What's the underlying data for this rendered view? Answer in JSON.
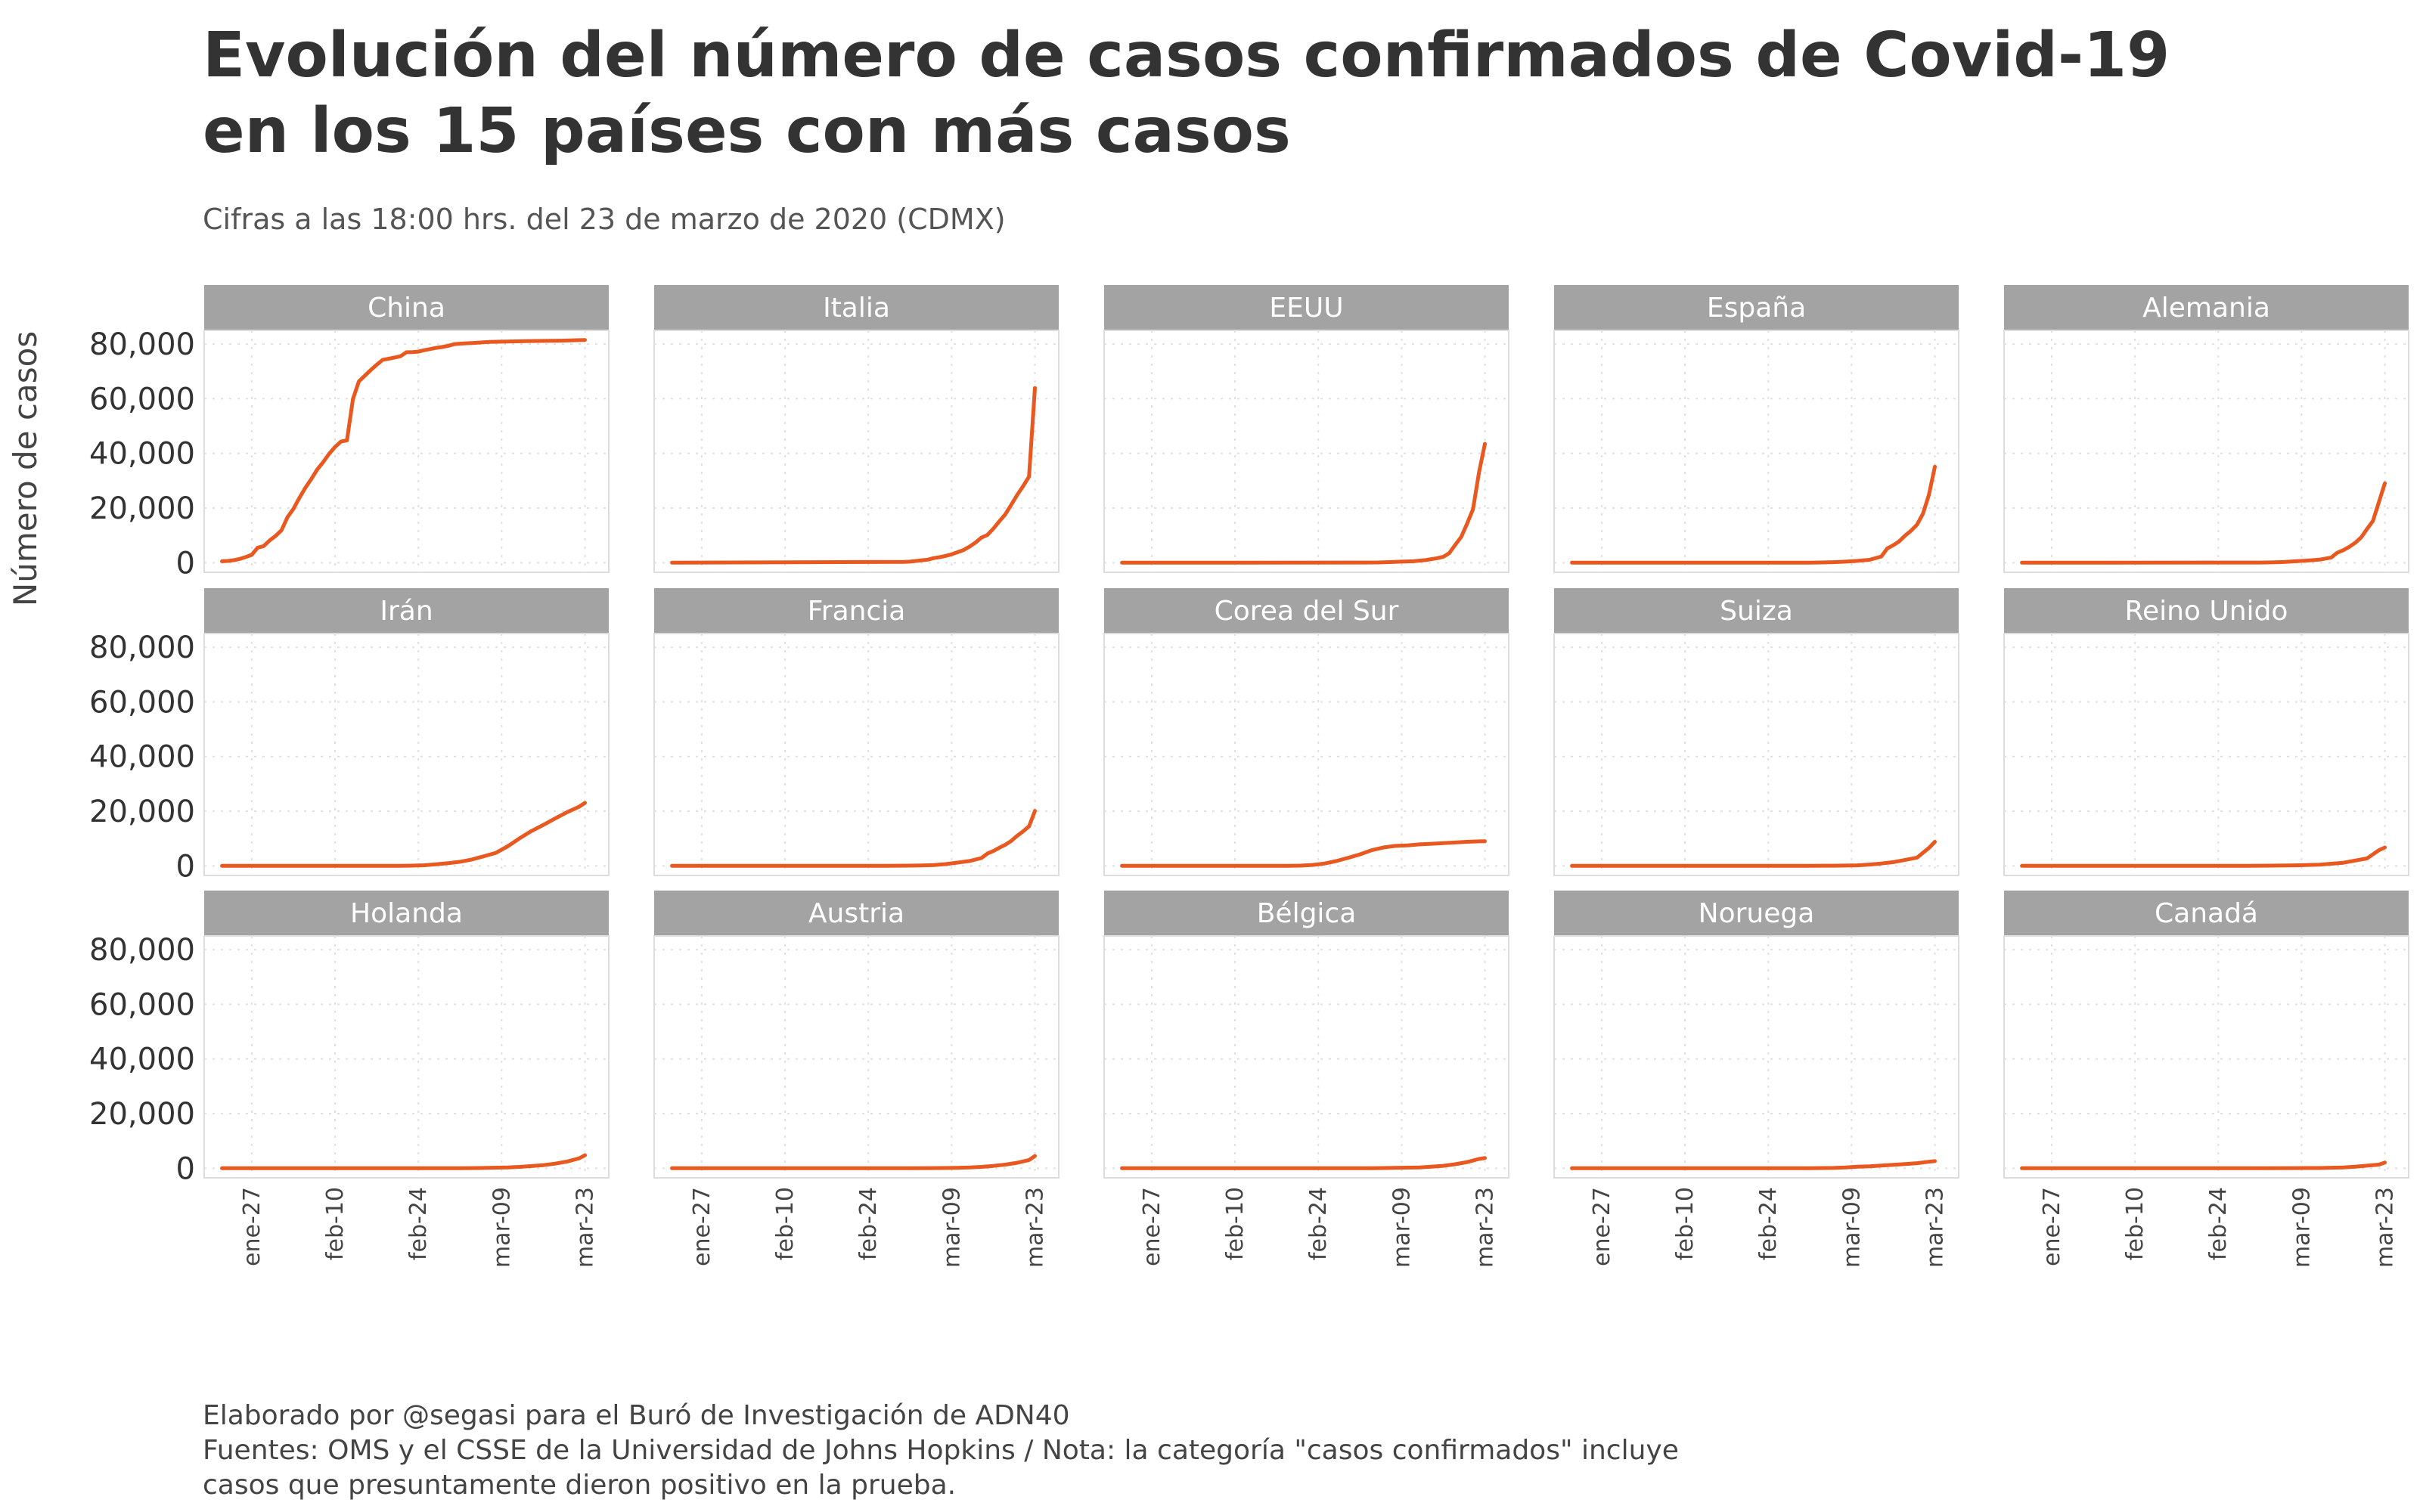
{
  "title": "Evolución del número de casos confirmados de Covid-19 en los 15 países con más casos",
  "subtitle": "Cifras a las 18:00 hrs. del 23 de marzo de 2020 (CDMX)",
  "caption": {
    "line1": "Elaborado por @segasi para el Buró de Investigación de ADN40",
    "line2": "Fuentes: OMS y el CSSE de la Universidad de Johns Hopkins / Nota: la categoría \"casos confirmados\" incluye",
    "line3": "casos que presuntamente dieron positivo en la prueba."
  },
  "colors": {
    "line": "#E8581F",
    "strip": "#A3A3A3",
    "grid": "#E0E0E0"
  },
  "chart_data": {
    "type": "line",
    "facet": "small-multiples",
    "ylabel": "Número de casos",
    "xlabel": "",
    "x_range_days": [
      0,
      62
    ],
    "ylim": [
      0,
      85000
    ],
    "y_ticks": [
      0,
      20000,
      40000,
      60000,
      80000
    ],
    "y_tick_labels": [
      "0",
      "20,000",
      "40,000",
      "60,000",
      "80,000"
    ],
    "x_ticks": [
      5,
      19,
      33,
      47,
      61
    ],
    "x_tick_labels": [
      "ene-27",
      "feb-10",
      "feb-24",
      "mar-09",
      "mar-23"
    ],
    "x_note": "x values are days since 2020-01-22",
    "series": [
      {
        "name": "China",
        "x": [
          0,
          1,
          2,
          3,
          4,
          5,
          6,
          7,
          8,
          9,
          10,
          11,
          12,
          13,
          14,
          15,
          16,
          17,
          18,
          19,
          20,
          21,
          22,
          23,
          24,
          25,
          26,
          27,
          28,
          29,
          30,
          31,
          32,
          33,
          34,
          35,
          36,
          37,
          38,
          39,
          40,
          41,
          42,
          45,
          48,
          51,
          54,
          57,
          61
        ],
        "values": [
          548,
          643,
          920,
          1406,
          2075,
          2877,
          5509,
          6087,
          8141,
          9802,
          11891,
          16630,
          19716,
          23707,
          27440,
          30587,
          34110,
          36814,
          39829,
          42354,
          44386,
          44759,
          59895,
          66358,
          68413,
          70513,
          72434,
          74211,
          74619,
          75077,
          75550,
          77001,
          77022,
          77241,
          77754,
          78166,
          78600,
          78928,
          79356,
          79932,
          80136,
          80261,
          80386,
          80757,
          80945,
          81048,
          81156,
          81250,
          81496
        ]
      },
      {
        "name": "Italia",
        "x": [
          0,
          39,
          40,
          41,
          42,
          43,
          44,
          45,
          46,
          47,
          48,
          49,
          50,
          51,
          52,
          53,
          54,
          55,
          56,
          57,
          58,
          59,
          60,
          61
        ],
        "values": [
          0,
          322,
          400,
          650,
          888,
          1128,
          1694,
          2036,
          2502,
          3089,
          3858,
          4636,
          5883,
          7375,
          9172,
          10149,
          12462,
          15113,
          17660,
          21157,
          24747,
          27980,
          31506,
          63927
        ]
      },
      {
        "name": "EEUU",
        "x": [
          0,
          40,
          43,
          45,
          47,
          49,
          51,
          53,
          54,
          55,
          56,
          57,
          58,
          59,
          60,
          61
        ],
        "values": [
          1,
          60,
          100,
          221,
          401,
          548,
          959,
          1680,
          2180,
          3500,
          6500,
          9400,
          14250,
          19600,
          33000,
          43500
        ]
      },
      {
        "name": "España",
        "x": [
          0,
          40,
          42,
          44,
          46,
          48,
          50,
          52,
          53,
          54,
          55,
          56,
          57,
          58,
          59,
          60,
          61
        ],
        "values": [
          0,
          32,
          84,
          198,
          400,
          673,
          1073,
          2277,
          5232,
          6391,
          7798,
          9942,
          11748,
          13910,
          17963,
          24926,
          35136
        ]
      },
      {
        "name": "Alemania",
        "x": [
          0,
          40,
          42,
          44,
          46,
          48,
          50,
          52,
          53,
          54,
          55,
          56,
          57,
          58,
          59,
          60,
          61
        ],
        "values": [
          1,
          80,
          130,
          262,
          545,
          795,
          1112,
          1908,
          3675,
          4585,
          5795,
          7272,
          9257,
          12327,
          15320,
          22213,
          29056
        ]
      },
      {
        "name": "Irán",
        "x": [
          0,
          28,
          30,
          32,
          34,
          36,
          38,
          40,
          42,
          44,
          46,
          48,
          50,
          52,
          54,
          56,
          58,
          60,
          61
        ],
        "values": [
          0,
          2,
          28,
          95,
          245,
          593,
          978,
          1501,
          2336,
          3513,
          4747,
          7161,
          10075,
          12729,
          14991,
          17361,
          19644,
          21638,
          23049
        ]
      },
      {
        "name": "Francia",
        "x": [
          0,
          34,
          36,
          38,
          40,
          42,
          44,
          46,
          48,
          50,
          52,
          53,
          54,
          55,
          56,
          57,
          58,
          59,
          60,
          61
        ],
        "values": [
          5,
          12,
          18,
          57,
          100,
          191,
          285,
          653,
          1209,
          1784,
          2860,
          4499,
          5423,
          6633,
          7699,
          9105,
          10995,
          12612,
          14459,
          20123
        ]
      },
      {
        "name": "Corea del Sur",
        "x": [
          0,
          28,
          30,
          32,
          34,
          36,
          38,
          40,
          42,
          44,
          46,
          48,
          50,
          52,
          54,
          56,
          58,
          60,
          61
        ],
        "values": [
          1,
          30,
          104,
          346,
          833,
          1766,
          2931,
          4212,
          5766,
          6767,
          7313,
          7513,
          7869,
          8086,
          8320,
          8565,
          8799,
          8961,
          9037
        ]
      },
      {
        "name": "Suiza",
        "x": [
          0,
          36,
          40,
          44,
          48,
          50,
          52,
          54,
          56,
          58,
          60,
          61
        ],
        "values": [
          0,
          1,
          18,
          56,
          214,
          491,
          868,
          1359,
          2200,
          3028,
          6575,
          8795
        ]
      },
      {
        "name": "Reino Unido",
        "x": [
          0,
          10,
          30,
          38,
          42,
          46,
          50,
          52,
          54,
          56,
          58,
          60,
          61
        ],
        "values": [
          0,
          2,
          9,
          23,
          85,
          206,
          456,
          798,
          1140,
          1960,
          2716,
          5741,
          6726
        ]
      },
      {
        "name": "Holanda",
        "x": [
          0,
          36,
          40,
          44,
          48,
          50,
          52,
          54,
          56,
          58,
          60,
          61
        ],
        "values": [
          0,
          1,
          24,
          128,
          321,
          503,
          804,
          1135,
          1705,
          2467,
          3640,
          4764
        ]
      },
      {
        "name": "Austria",
        "x": [
          0,
          34,
          40,
          44,
          48,
          50,
          52,
          54,
          56,
          58,
          60,
          61
        ],
        "values": [
          0,
          2,
          21,
          71,
          182,
          302,
          504,
          860,
          1332,
          2013,
          3024,
          4486
        ]
      },
      {
        "name": "Bélgica",
        "x": [
          0,
          10,
          38,
          42,
          46,
          50,
          52,
          54,
          56,
          58,
          60,
          61
        ],
        "values": [
          0,
          1,
          2,
          23,
          169,
          314,
          559,
          886,
          1486,
          2257,
          3401,
          3743
        ]
      },
      {
        "name": "Noruega",
        "x": [
          0,
          36,
          40,
          44,
          46,
          48,
          50,
          52,
          54,
          56,
          58,
          60,
          61
        ],
        "values": [
          0,
          1,
          25,
          113,
          277,
          598,
          702,
          996,
          1256,
          1552,
          1877,
          2383,
          2621
        ]
      },
      {
        "name": "Canadá",
        "x": [
          0,
          4,
          34,
          40,
          46,
          50,
          52,
          54,
          56,
          58,
          60,
          61
        ],
        "values": [
          0,
          1,
          11,
          33,
          77,
          108,
          198,
          324,
          569,
          943,
          1328,
          2088
        ]
      }
    ]
  }
}
